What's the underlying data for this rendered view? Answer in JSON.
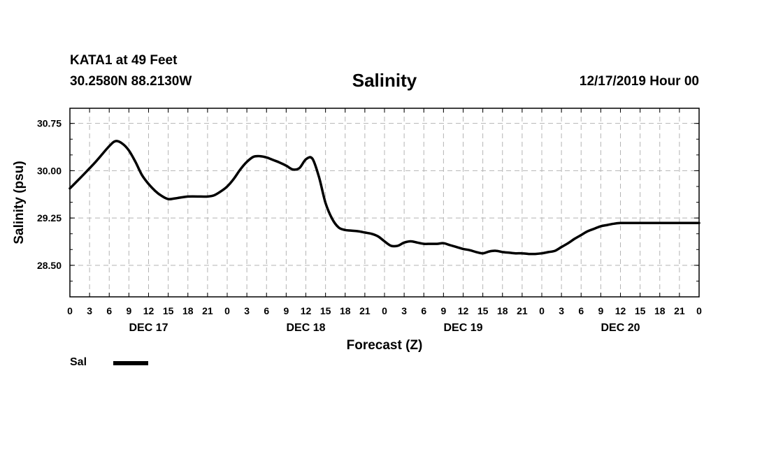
{
  "header": {
    "station": "KATA1 at 49 Feet",
    "coords": "30.2580N 88.2130W",
    "run_time": "12/17/2019 Hour 00"
  },
  "legend": {
    "label": "Sal",
    "color": "#000000"
  },
  "chart_data": {
    "type": "line",
    "title": "Salinity",
    "xlabel": "Forecast (Z)",
    "ylabel": "Salinity (psu)",
    "ylim": [
      28.0,
      30.99
    ],
    "xlim": [
      0,
      96
    ],
    "y_ticks": [
      "28.50",
      "29.25",
      "30.00",
      "30.75"
    ],
    "x_tick_labels": [
      "0",
      "3",
      "6",
      "9",
      "12",
      "15",
      "18",
      "21",
      "0",
      "3",
      "6",
      "9",
      "12",
      "15",
      "18",
      "21",
      "0",
      "3",
      "6",
      "9",
      "12",
      "15",
      "18",
      "21",
      "0",
      "3",
      "6",
      "9",
      "12",
      "15",
      "18",
      "21",
      "0"
    ],
    "day_labels": [
      {
        "label": "DEC 17",
        "hour": 12
      },
      {
        "label": "DEC 18",
        "hour": 36
      },
      {
        "label": "DEC 19",
        "hour": 60
      },
      {
        "label": "DEC 20",
        "hour": 84
      }
    ],
    "grid": true,
    "series": [
      {
        "name": "Sal",
        "x": [
          0,
          2,
          4,
          6,
          7,
          8,
          9,
          10,
          11,
          12,
          13,
          14,
          15,
          16,
          18,
          20,
          21,
          22,
          23,
          24,
          25,
          26,
          27,
          28,
          29,
          30,
          31,
          32,
          33,
          34,
          35,
          36,
          37,
          38,
          39,
          40,
          41,
          42,
          43,
          44,
          45,
          46,
          47,
          48,
          49,
          50,
          51,
          52,
          53,
          54,
          55,
          56,
          57,
          58,
          59,
          60,
          61,
          62,
          63,
          64,
          65,
          66,
          67,
          68,
          69,
          70,
          71,
          72,
          73,
          74,
          75,
          76,
          77,
          78,
          79,
          80,
          81,
          82,
          83,
          84,
          85,
          86,
          87,
          88,
          89,
          90,
          91,
          92,
          93,
          94,
          95,
          96
        ],
        "values": [
          29.72,
          29.93,
          30.15,
          30.39,
          30.47,
          30.43,
          30.32,
          30.14,
          29.93,
          29.79,
          29.68,
          29.6,
          29.55,
          29.56,
          29.59,
          29.59,
          29.59,
          29.61,
          29.67,
          29.75,
          29.87,
          30.02,
          30.14,
          30.22,
          30.23,
          30.21,
          30.17,
          30.13,
          30.08,
          30.02,
          30.04,
          30.18,
          30.19,
          29.9,
          29.49,
          29.24,
          29.1,
          29.06,
          29.05,
          29.04,
          29.02,
          29.0,
          28.96,
          28.88,
          28.81,
          28.81,
          28.86,
          28.88,
          28.86,
          28.84,
          28.84,
          28.84,
          28.85,
          28.82,
          28.79,
          28.76,
          28.74,
          28.71,
          28.69,
          28.72,
          28.73,
          28.71,
          28.7,
          28.69,
          28.69,
          28.68,
          28.68,
          28.69,
          28.71,
          28.73,
          28.79,
          28.85,
          28.92,
          28.98,
          29.04,
          29.08,
          29.12,
          29.14,
          29.16,
          29.17,
          29.17,
          29.17,
          29.17,
          29.17,
          29.17,
          29.17,
          29.17,
          29.17,
          29.17,
          29.17,
          29.17,
          29.17
        ]
      }
    ]
  }
}
